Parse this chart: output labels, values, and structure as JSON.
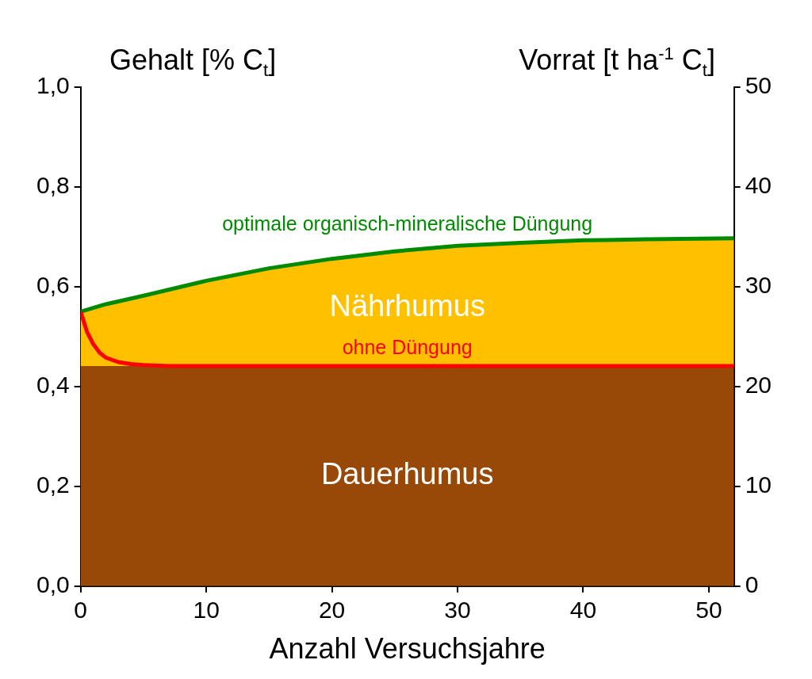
{
  "chart_data": {
    "type": "area",
    "xlabel": "Anzahl Versuchsjahre",
    "ylabel": "Gehalt [% C$_{t}$]",
    "y2label": "Vorrat [t ha$^{-1}$ C$_{t}$]",
    "xlim": [
      0,
      52
    ],
    "xticks": [
      0,
      10,
      20,
      30,
      40,
      50
    ],
    "ylim": [
      0,
      1
    ],
    "yticks": [
      {
        "value": 0,
        "label": "0,0"
      },
      {
        "value": 0.2,
        "label": "0,2"
      },
      {
        "value": 0.4,
        "label": "0,4"
      },
      {
        "value": 0.6,
        "label": "0,6"
      },
      {
        "value": 0.8,
        "label": "0,8"
      },
      {
        "value": 1,
        "label": "1,0"
      }
    ],
    "y2lim": [
      0,
      50
    ],
    "y2ticks": [
      0,
      10,
      20,
      30,
      40,
      50
    ],
    "grid": false,
    "legend": false,
    "series": [
      {
        "name": "Dauerhumus",
        "type": "area",
        "color": "#984807",
        "x": [
          0,
          52
        ],
        "values": [
          0.441,
          0.441
        ]
      },
      {
        "name": "Nährhumus",
        "type": "area",
        "color": "#ffc000",
        "x": [
          0,
          2,
          5,
          10,
          15,
          20,
          25,
          30,
          35,
          40,
          45,
          52
        ],
        "values": [
          0.55,
          0.565,
          0.582,
          0.612,
          0.637,
          0.656,
          0.671,
          0.682,
          0.688,
          0.693,
          0.695,
          0.697
        ]
      },
      {
        "name": "optimale organisch-mineralische Düngung",
        "type": "line",
        "color": "#008a00",
        "x": [
          0,
          2,
          5,
          10,
          15,
          20,
          25,
          30,
          35,
          40,
          45,
          52
        ],
        "values": [
          0.55,
          0.565,
          0.582,
          0.612,
          0.637,
          0.656,
          0.671,
          0.682,
          0.688,
          0.693,
          0.695,
          0.697
        ]
      },
      {
        "name": "ohne Düngung",
        "type": "line",
        "color": "#ff0000",
        "x": [
          0,
          0.5,
          1,
          1.5,
          2,
          3,
          4,
          5,
          7,
          52
        ],
        "values": [
          0.55,
          0.51,
          0.485,
          0.468,
          0.458,
          0.449,
          0.445,
          0.443,
          0.441,
          0.441
        ]
      }
    ]
  }
}
